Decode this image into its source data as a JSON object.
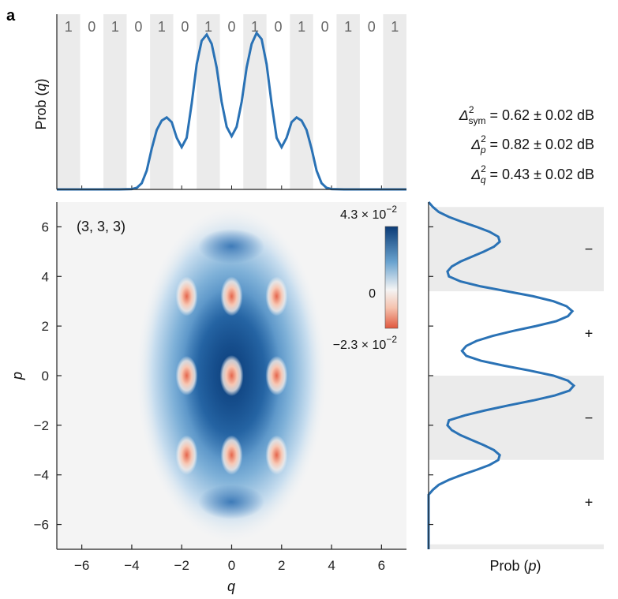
{
  "panel_label": "a",
  "chart_data": [
    {
      "type": "line",
      "name": "top-marginal",
      "ylabel": "Prob (q)",
      "ylabel_parts": {
        "text": "Prob (",
        "var": "q",
        "close": ")"
      },
      "bit_labels": [
        "1",
        "0",
        "1",
        "0",
        "1",
        "0",
        "1",
        "0",
        "1",
        "0",
        "1",
        "0",
        "1",
        "0",
        "1"
      ],
      "x": [
        -7,
        -6.5,
        -6,
        -5.5,
        -5,
        -4.5,
        -4,
        -3.8,
        -3.6,
        -3.4,
        -3.2,
        -3.0,
        -2.8,
        -2.6,
        -2.4,
        -2.2,
        -2.0,
        -1.8,
        -1.6,
        -1.4,
        -1.2,
        -1.0,
        -0.8,
        -0.6,
        -0.4,
        -0.2,
        0,
        0.2,
        0.4,
        0.6,
        0.8,
        1.0,
        1.2,
        1.4,
        1.6,
        1.8,
        2.0,
        2.2,
        2.4,
        2.6,
        2.8,
        3.0,
        3.2,
        3.4,
        3.6,
        3.8,
        4.0,
        4.5,
        5,
        5.5,
        6,
        6.5,
        7
      ],
      "y": [
        0,
        0,
        0,
        0,
        0,
        0,
        0.002,
        0.01,
        0.04,
        0.12,
        0.26,
        0.38,
        0.44,
        0.46,
        0.43,
        0.33,
        0.27,
        0.33,
        0.55,
        0.8,
        0.95,
        0.99,
        0.93,
        0.78,
        0.56,
        0.4,
        0.34,
        0.4,
        0.56,
        0.78,
        0.93,
        1.0,
        0.96,
        0.8,
        0.55,
        0.33,
        0.27,
        0.33,
        0.43,
        0.46,
        0.44,
        0.38,
        0.26,
        0.12,
        0.04,
        0.01,
        0.002,
        0,
        0,
        0,
        0,
        0,
        0
      ],
      "xlim": [
        -7,
        7
      ],
      "ylim": [
        0,
        1.12
      ]
    },
    {
      "type": "heatmap",
      "name": "wigner-function",
      "annotation": "(3, 3, 3)",
      "xlabel": "q",
      "ylabel": "p",
      "xlim": [
        -7,
        7
      ],
      "ylim": [
        -7,
        7
      ],
      "xticks": [
        -6,
        -4,
        -2,
        0,
        2,
        4,
        6
      ],
      "yticks": [
        -6,
        -4,
        -2,
        0,
        2,
        4,
        6
      ],
      "xtick_labels": [
        "−6",
        "−4",
        "−2",
        "0",
        "2",
        "4",
        "6"
      ],
      "ytick_labels": [
        "−6",
        "−4",
        "−2",
        "0",
        "2",
        "4",
        "6"
      ],
      "colorbar": {
        "max_mantissa": "4.3 × 10",
        "max_exp": "−2",
        "zero_label": "0",
        "min_mantissa": "−2.3 × 10",
        "min_exp": "−2",
        "max": 0.043,
        "min": -0.023,
        "colors": {
          "max": "#0b3b76",
          "mid": "#f4f4f4",
          "min": "#e5664c"
        }
      },
      "negative_peaks": [
        {
          "q": -1.8,
          "p": 3.2
        },
        {
          "q": 0,
          "p": 3.2
        },
        {
          "q": 1.8,
          "p": 3.2
        },
        {
          "q": -1.8,
          "p": 0
        },
        {
          "q": 0,
          "p": 0
        },
        {
          "q": 1.8,
          "p": 0
        },
        {
          "q": -1.8,
          "p": -3.2
        },
        {
          "q": 0,
          "p": -3.2
        },
        {
          "q": 1.8,
          "p": -3.2
        }
      ]
    },
    {
      "type": "line",
      "name": "right-marginal",
      "xlabel": "Prob (p)",
      "xlabel_parts": {
        "text": "Prob (",
        "var": "p",
        "close": ")"
      },
      "sign_labels": [
        "−",
        "+",
        "−",
        "+"
      ],
      "p": [
        7,
        6.8,
        6.6,
        6.4,
        6.2,
        6.0,
        5.8,
        5.6,
        5.4,
        5.2,
        5.0,
        4.8,
        4.6,
        4.4,
        4.2,
        4.0,
        3.8,
        3.6,
        3.4,
        3.2,
        3.0,
        2.8,
        2.6,
        2.4,
        2.2,
        2.0,
        1.8,
        1.6,
        1.4,
        1.2,
        1.0,
        0.8,
        0.6,
        0.4,
        0.2,
        0,
        -0.2,
        -0.4,
        -0.6,
        -0.8,
        -1.0,
        -1.2,
        -1.4,
        -1.6,
        -1.8,
        -2.0,
        -2.2,
        -2.4,
        -2.6,
        -2.8,
        -3.0,
        -3.2,
        -3.4,
        -3.6,
        -3.8,
        -4.0,
        -4.2,
        -4.4,
        -4.6,
        -4.8,
        -5.0,
        -5.2,
        -5.4,
        -5.6,
        -5.8,
        -6.0,
        -6.2,
        -6.4,
        -6.6,
        -6.8,
        -7
      ],
      "prob": [
        0,
        0.03,
        0.07,
        0.14,
        0.23,
        0.33,
        0.42,
        0.48,
        0.49,
        0.45,
        0.38,
        0.3,
        0.22,
        0.16,
        0.13,
        0.14,
        0.22,
        0.36,
        0.54,
        0.72,
        0.86,
        0.95,
        0.99,
        0.96,
        0.88,
        0.74,
        0.58,
        0.44,
        0.33,
        0.26,
        0.23,
        0.26,
        0.36,
        0.52,
        0.7,
        0.86,
        0.96,
        1.0,
        0.97,
        0.87,
        0.72,
        0.55,
        0.39,
        0.25,
        0.14,
        0.13,
        0.16,
        0.22,
        0.3,
        0.38,
        0.45,
        0.49,
        0.48,
        0.42,
        0.33,
        0.23,
        0.14,
        0.07,
        0.03,
        0,
        0,
        0,
        0,
        0,
        0,
        0,
        0,
        0,
        0,
        0,
        0
      ],
      "ylim": [
        -7,
        7
      ]
    }
  ],
  "stats": [
    {
      "symbol": "Δ",
      "sup": "2",
      "sub": "sym",
      "value": " = 0.62 ± 0.02 dB"
    },
    {
      "symbol": "Δ",
      "sup": "2",
      "sub": "p",
      "value": " = 0.82 ± 0.02 dB"
    },
    {
      "symbol": "Δ",
      "sup": "2",
      "sub": "q",
      "value": " = 0.43 ± 0.02 dB"
    }
  ],
  "colors": {
    "curve": "#2a72b5",
    "band_dark": "#ebebeb",
    "band_light": "#f6f6f6"
  }
}
